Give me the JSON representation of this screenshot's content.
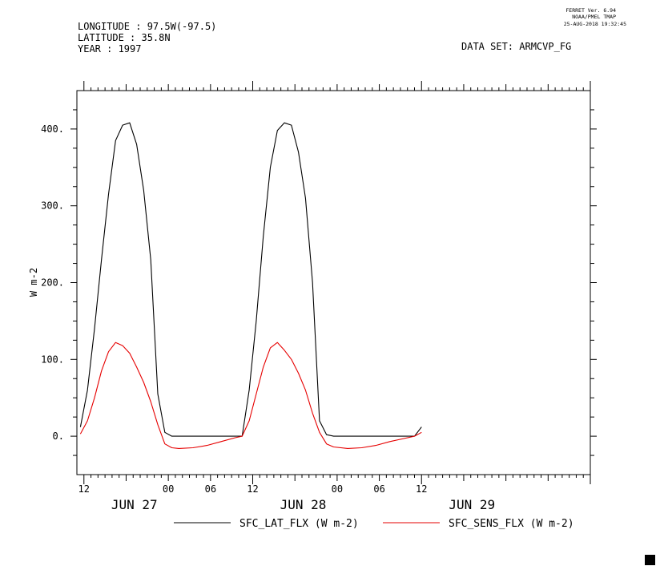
{
  "header": {
    "longitude": "LONGITUDE : 97.5W(-97.5)",
    "latitude": "LATITUDE : 35.8N",
    "year": "YEAR : 1997",
    "dataset": "DATA SET: ARMCVP_FG",
    "ferret_version": "FERRET Ver. 6.94",
    "ferret_org": "NOAA/PMEL TMAP",
    "timestamp": "25-AUG-2018 19:32:45"
  },
  "chart_data": {
    "type": "line",
    "title": "",
    "xlabel": "",
    "ylabel": "W m-2",
    "xlim": [
      "1997-06-26T11:00",
      "1997-06-29T12:00"
    ],
    "ylim": [
      -50,
      450
    ],
    "grid": false,
    "legend_position": "bottom",
    "yticks": [
      {
        "value": 0,
        "label": "0."
      },
      {
        "value": 100,
        "label": "100."
      },
      {
        "value": 200,
        "label": "200."
      },
      {
        "value": 300,
        "label": "300."
      },
      {
        "value": 400,
        "label": "400."
      }
    ],
    "xticks": [
      {
        "x": "1997-06-26T12:00",
        "label": "12"
      },
      {
        "x": "1997-06-27T00:00",
        "label": "00"
      },
      {
        "x": "1997-06-27T06:00",
        "label": "06"
      },
      {
        "x": "1997-06-27T12:00",
        "label": "12"
      },
      {
        "x": "1997-06-28T00:00",
        "label": "00"
      },
      {
        "x": "1997-06-28T06:00",
        "label": "06"
      },
      {
        "x": "1997-06-28T12:00",
        "label": "12"
      }
    ],
    "day_labels": [
      {
        "x": "1997-06-26T12:00",
        "label": "JUN 27"
      },
      {
        "x": "1997-06-27T12:00",
        "label": "JUN 28"
      },
      {
        "x": "1997-06-28T12:00",
        "label": "JUN 29"
      }
    ],
    "series": [
      {
        "name": "SFC_LAT_FLX (W m-2)",
        "color": "#000000",
        "points": [
          [
            "1997-06-26T11:30",
            12
          ],
          [
            "1997-06-26T12:30",
            60
          ],
          [
            "1997-06-26T13:30",
            140
          ],
          [
            "1997-06-26T14:30",
            230
          ],
          [
            "1997-06-26T15:30",
            315
          ],
          [
            "1997-06-26T16:30",
            385
          ],
          [
            "1997-06-26T17:30",
            405
          ],
          [
            "1997-06-26T18:30",
            408
          ],
          [
            "1997-06-26T19:30",
            380
          ],
          [
            "1997-06-26T20:30",
            320
          ],
          [
            "1997-06-26T21:30",
            230
          ],
          [
            "1997-06-26T22:30",
            55
          ],
          [
            "1997-06-26T23:30",
            5
          ],
          [
            "1997-06-27T00:30",
            0
          ],
          [
            "1997-06-27T10:30",
            0
          ],
          [
            "1997-06-27T11:30",
            60
          ],
          [
            "1997-06-27T12:30",
            150
          ],
          [
            "1997-06-27T13:30",
            260
          ],
          [
            "1997-06-27T14:30",
            350
          ],
          [
            "1997-06-27T15:30",
            398
          ],
          [
            "1997-06-27T16:30",
            408
          ],
          [
            "1997-06-27T17:30",
            405
          ],
          [
            "1997-06-27T18:30",
            370
          ],
          [
            "1997-06-27T19:30",
            310
          ],
          [
            "1997-06-27T20:30",
            200
          ],
          [
            "1997-06-27T21:30",
            20
          ],
          [
            "1997-06-27T22:30",
            2
          ],
          [
            "1997-06-27T23:30",
            0
          ],
          [
            "1997-06-28T11:00",
            0
          ],
          [
            "1997-06-28T12:00",
            12
          ]
        ]
      },
      {
        "name": "SFC_SENS_FLX (W m-2)",
        "color": "#e60000",
        "points": [
          [
            "1997-06-26T11:30",
            3
          ],
          [
            "1997-06-26T12:30",
            20
          ],
          [
            "1997-06-26T13:30",
            50
          ],
          [
            "1997-06-26T14:30",
            85
          ],
          [
            "1997-06-26T15:30",
            110
          ],
          [
            "1997-06-26T16:30",
            122
          ],
          [
            "1997-06-26T17:30",
            118
          ],
          [
            "1997-06-26T18:30",
            108
          ],
          [
            "1997-06-26T19:30",
            90
          ],
          [
            "1997-06-26T20:30",
            70
          ],
          [
            "1997-06-26T21:30",
            45
          ],
          [
            "1997-06-26T22:30",
            15
          ],
          [
            "1997-06-26T23:30",
            -10
          ],
          [
            "1997-06-27T00:30",
            -15
          ],
          [
            "1997-06-27T01:30",
            -16
          ],
          [
            "1997-06-27T03:30",
            -15
          ],
          [
            "1997-06-27T05:30",
            -12
          ],
          [
            "1997-06-27T07:30",
            -7
          ],
          [
            "1997-06-27T09:30",
            -2
          ],
          [
            "1997-06-27T10:30",
            0
          ],
          [
            "1997-06-27T11:30",
            20
          ],
          [
            "1997-06-27T12:30",
            55
          ],
          [
            "1997-06-27T13:30",
            90
          ],
          [
            "1997-06-27T14:30",
            115
          ],
          [
            "1997-06-27T15:30",
            122
          ],
          [
            "1997-06-27T16:30",
            112
          ],
          [
            "1997-06-27T17:30",
            100
          ],
          [
            "1997-06-27T18:30",
            82
          ],
          [
            "1997-06-27T19:30",
            60
          ],
          [
            "1997-06-27T20:30",
            30
          ],
          [
            "1997-06-27T21:30",
            5
          ],
          [
            "1997-06-27T22:30",
            -10
          ],
          [
            "1997-06-27T23:30",
            -14
          ],
          [
            "1997-06-28T01:30",
            -16
          ],
          [
            "1997-06-28T03:30",
            -15
          ],
          [
            "1997-06-28T05:30",
            -12
          ],
          [
            "1997-06-28T07:30",
            -7
          ],
          [
            "1997-06-28T09:30",
            -3
          ],
          [
            "1997-06-28T11:00",
            0
          ],
          [
            "1997-06-28T12:00",
            5
          ]
        ]
      }
    ]
  }
}
